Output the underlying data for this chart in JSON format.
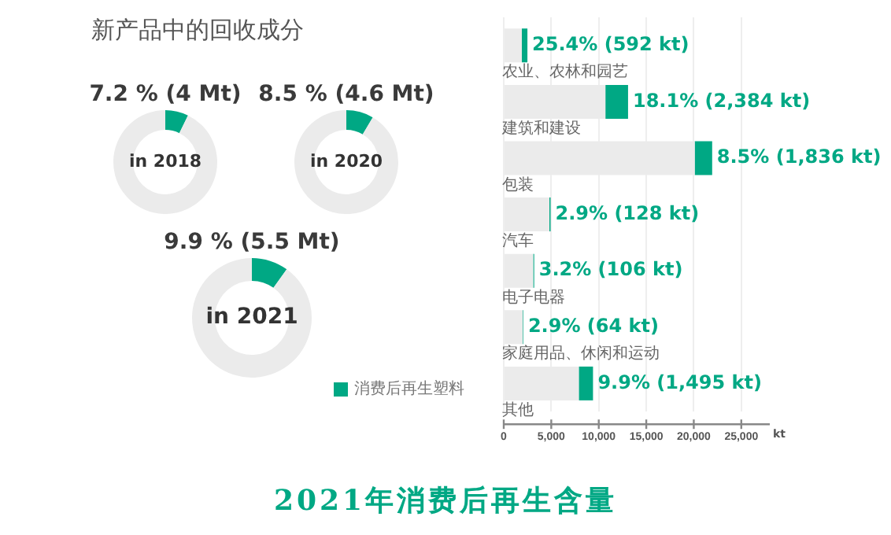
{
  "chart_data": [
    {
      "type": "other",
      "title": "新产品中的回收成分",
      "annotations": [
        "2021年消费后再生含量"
      ]
    },
    {
      "type": "donut",
      "title": "7.2 % (4 Mt)",
      "categories": [
        null,
        null
      ],
      "values": [
        7.2,
        92.8
      ],
      "colors": [
        "#00a884",
        "#ebebeb"
      ],
      "annotations": [
        "in 2018"
      ]
    },
    {
      "type": "donut",
      "title": "8.5 % (4.6 Mt)",
      "categories": [
        null,
        null
      ],
      "values": [
        8.5,
        91.5
      ],
      "colors": [
        "#00a884",
        "#ebebeb"
      ],
      "annotations": [
        "in 2020"
      ]
    },
    {
      "type": "donut",
      "title": "9.9 % (5.5 Mt)",
      "categories": [
        null,
        null
      ],
      "values": [
        9.9,
        90.1
      ],
      "colors": [
        "#00a884",
        "#ebebeb"
      ],
      "annotations": [
        "in 2021"
      ]
    },
    {
      "type": "bar",
      "orientation": "horizontal",
      "stacked": true,
      "categories": [
        "农业、农林和园艺",
        "建筑和建设",
        "包装",
        "汽车",
        "电子电器",
        "家庭用品、休闲和运动",
        "其他"
      ],
      "series": [
        {
          "color": "#ebebeb",
          "values": [
            1900,
            10700,
            20100,
            4800,
            3100,
            2000,
            7900
          ]
        },
        {
          "name": "消费后再生塑料",
          "color": "#00a884",
          "values": [
            592,
            2384,
            1836,
            128,
            106,
            64,
            1495
          ],
          "value_labels": [
            "25.4% (592 kt)",
            "18.1% (2,384 kt)",
            "8.5% (1,836 kt)",
            "2.9% (128 kt)",
            "3.2% (106 kt)",
            "2.9% (64 kt)",
            "9.9% (1,495 kt)"
          ]
        }
      ],
      "xlim": [
        0,
        28000
      ],
      "xticks": [
        0,
        {
          "value": 5000,
          "label": "5,000"
        },
        {
          "value": 10000,
          "label": "10,000"
        },
        {
          "value": 15000,
          "label": "15,000"
        },
        {
          "value": 20000,
          "label": "20,000"
        },
        {
          "value": 25000,
          "label": "25,000"
        }
      ],
      "xlabel": "kt",
      "grid": "x",
      "legend": "bottom left"
    }
  ]
}
